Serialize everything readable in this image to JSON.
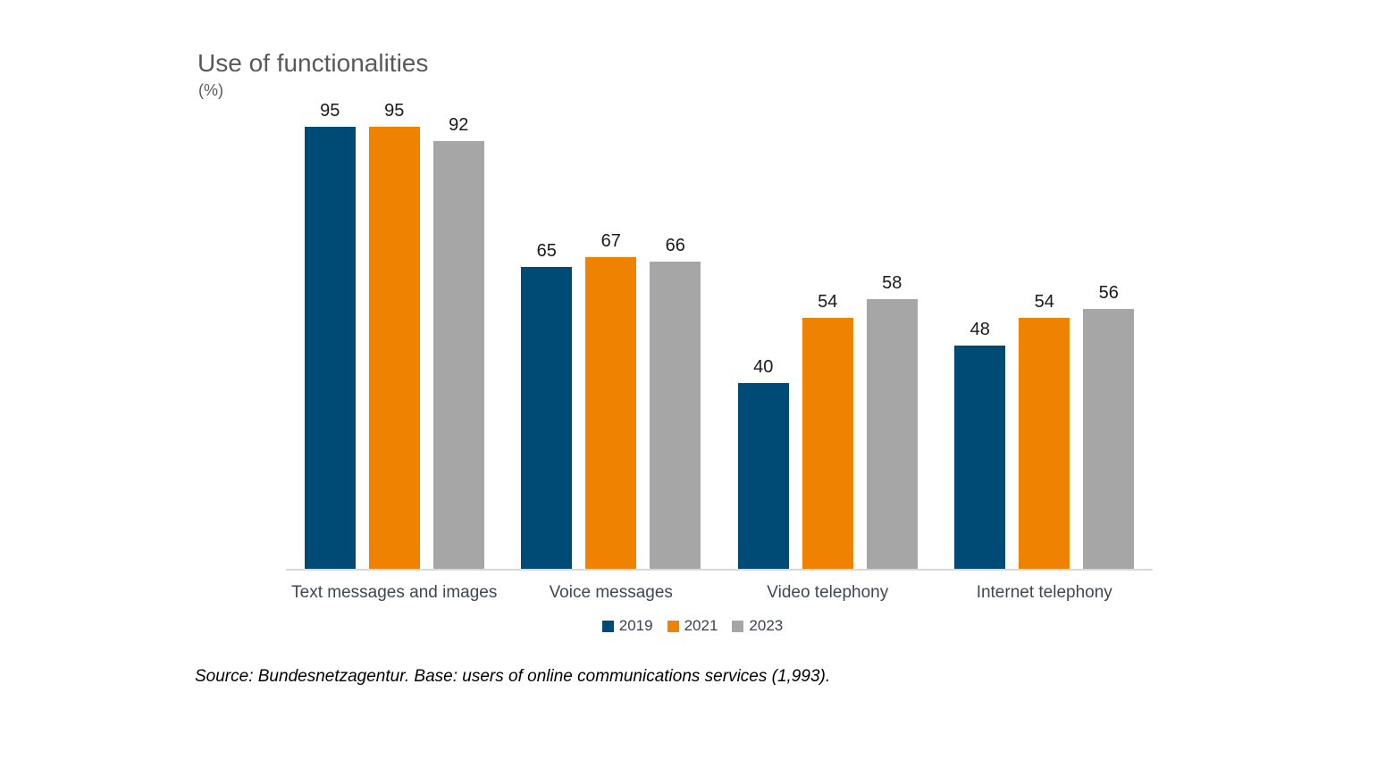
{
  "chart": {
    "title": "Use of functionalities",
    "unit_label": "(%)",
    "source": "Source: Bundesnetzagentur. Base: users of online communications services (1,993)."
  },
  "chart_data": {
    "type": "bar",
    "title": "Use of functionalities",
    "xlabel": "",
    "ylabel": "(%)",
    "ylim": [
      0,
      100
    ],
    "grid": false,
    "legend_position": "bottom",
    "value_labels": true,
    "categories": [
      "Text messages and images",
      "Voice messages",
      "Video telephony",
      "Internet telephony"
    ],
    "series": [
      {
        "name": "2019",
        "color": "#004b75",
        "values": [
          95,
          65,
          40,
          48
        ]
      },
      {
        "name": "2021",
        "color": "#ef8200",
        "values": [
          95,
          67,
          54,
          54
        ]
      },
      {
        "name": "2023",
        "color": "#a6a6a6",
        "values": [
          92,
          66,
          58,
          56
        ]
      }
    ],
    "axis_line_color": "#d9d9d9"
  }
}
